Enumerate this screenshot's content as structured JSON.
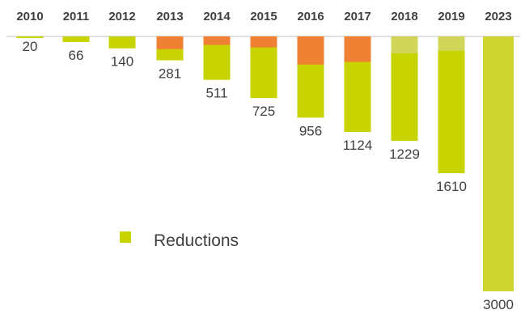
{
  "chart_data": {
    "type": "bar",
    "orientation": "downward",
    "categories": [
      "2010",
      "2011",
      "2012",
      "2013",
      "2014",
      "2015",
      "2016",
      "2017",
      "2018",
      "2019",
      "2023"
    ],
    "series": [
      {
        "name": "Reductions",
        "values": [
          20,
          66,
          140,
          281,
          511,
          725,
          956,
          1124,
          1229,
          1610,
          3000
        ],
        "color": "#c8d400"
      }
    ],
    "overlay_segments": [
      {
        "category": "2013",
        "value": 150,
        "color": "#f08033"
      },
      {
        "category": "2014",
        "value": 100,
        "color": "#f08033"
      },
      {
        "category": "2015",
        "value": 130,
        "color": "#f08033"
      },
      {
        "category": "2016",
        "value": 330,
        "color": "#f08033"
      },
      {
        "category": "2017",
        "value": 300,
        "color": "#f08033"
      },
      {
        "category": "2018",
        "value": 200,
        "color": "#d1d65a"
      },
      {
        "category": "2019",
        "value": 170,
        "color": "#d1d65a"
      }
    ],
    "data_labels": [
      "20",
      "66",
      "140",
      "281",
      "511",
      "725",
      "956",
      "1124",
      "1229",
      "1610",
      "3000"
    ],
    "legend": {
      "entries": [
        "Reductions"
      ],
      "placement": "bottom-left"
    },
    "ylim": [
      0,
      3000
    ],
    "grid": false,
    "title": "",
    "xlabel": "",
    "ylabel": ""
  },
  "colors": {
    "baseline": "#c0c0c0",
    "text": "#404040",
    "reductions": "#c8d400",
    "final_bar": "#cdd62e"
  }
}
